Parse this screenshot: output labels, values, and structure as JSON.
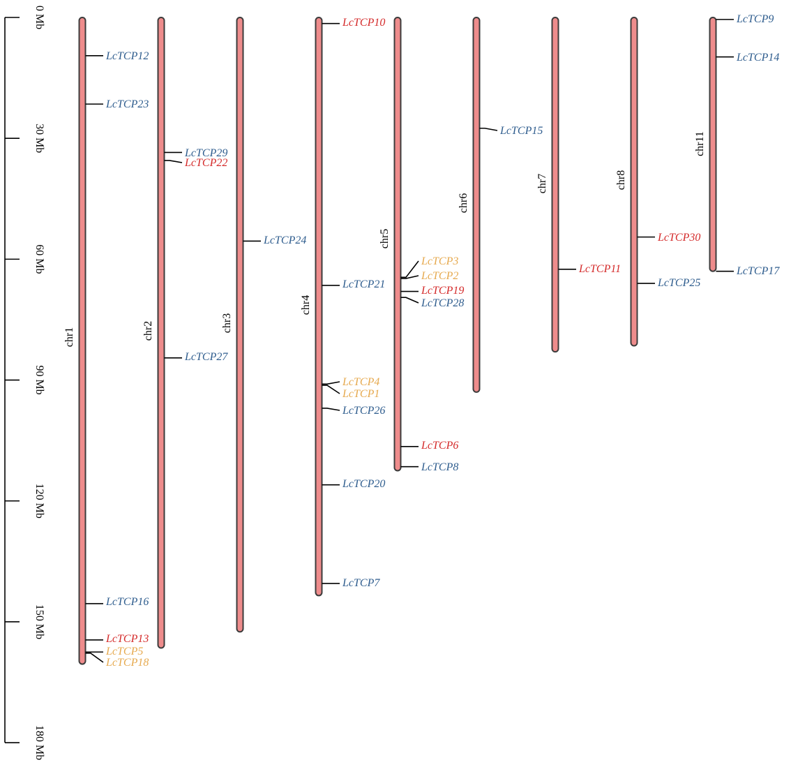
{
  "scale": {
    "unit": "Mb",
    "max": 180,
    "ticks": [
      {
        "value": 0,
        "label": "0 Mb"
      },
      {
        "value": 30,
        "label": "30 Mb"
      },
      {
        "value": 60,
        "label": "60 Mb"
      },
      {
        "value": 90,
        "label": "90 Mb"
      },
      {
        "value": 120,
        "label": "120 Mb"
      },
      {
        "value": 150,
        "label": "150 Mb"
      },
      {
        "value": 180,
        "label": "180 Mb"
      }
    ]
  },
  "colors": {
    "chromosome_fill": "#ee8c8c",
    "chromosome_stroke": "#3c3c3c",
    "red": "#d42a2a",
    "blue": "#2f5d8e",
    "orange": "#e6a94e"
  },
  "chromosomes": [
    {
      "name": "chr1",
      "length": 160.5,
      "genes": [
        {
          "name": "LcTCP12",
          "pos": 9.5,
          "color": "blue"
        },
        {
          "name": "LcTCP23",
          "pos": 21.5,
          "color": "blue"
        },
        {
          "name": "LcTCP16",
          "pos": 145.5,
          "color": "blue"
        },
        {
          "name": "LcTCP13",
          "pos": 154.5,
          "color": "red"
        },
        {
          "name": "LcTCP5",
          "pos": 157.5,
          "color": "orange"
        },
        {
          "name": "LcTCP18",
          "pos": 157.8,
          "color": "orange"
        }
      ]
    },
    {
      "name": "chr2",
      "length": 156.5,
      "genes": [
        {
          "name": "LcTCP29",
          "pos": 33.5,
          "color": "blue"
        },
        {
          "name": "LcTCP22",
          "pos": 35.5,
          "color": "red"
        },
        {
          "name": "LcTCP27",
          "pos": 84.5,
          "color": "blue"
        }
      ]
    },
    {
      "name": "chr3",
      "length": 152.5,
      "genes": [
        {
          "name": "LcTCP24",
          "pos": 55.5,
          "color": "blue"
        }
      ]
    },
    {
      "name": "chr4",
      "length": 143.5,
      "genes": [
        {
          "name": "LcTCP10",
          "pos": 1.5,
          "color": "red"
        },
        {
          "name": "LcTCP21",
          "pos": 66.5,
          "color": "blue"
        },
        {
          "name": "LcTCP4",
          "pos": 91.0,
          "color": "orange"
        },
        {
          "name": "LcTCP1",
          "pos": 91.3,
          "color": "orange"
        },
        {
          "name": "LcTCP26",
          "pos": 97.0,
          "color": "blue"
        },
        {
          "name": "LcTCP20",
          "pos": 116.0,
          "color": "blue"
        },
        {
          "name": "LcTCP7",
          "pos": 140.5,
          "color": "blue"
        }
      ]
    },
    {
      "name": "chr5",
      "length": 112.5,
      "genes": [
        {
          "name": "LcTCP3",
          "pos": 64.5,
          "color": "orange"
        },
        {
          "name": "LcTCP2",
          "pos": 64.8,
          "color": "orange"
        },
        {
          "name": "LcTCP19",
          "pos": 68.0,
          "color": "red"
        },
        {
          "name": "LcTCP28",
          "pos": 69.5,
          "color": "blue"
        },
        {
          "name": "LcTCP6",
          "pos": 106.5,
          "color": "red"
        },
        {
          "name": "LcTCP8",
          "pos": 111.5,
          "color": "blue"
        }
      ]
    },
    {
      "name": "chr6",
      "length": 93.0,
      "genes": [
        {
          "name": "LcTCP15",
          "pos": 27.5,
          "color": "blue"
        }
      ]
    },
    {
      "name": "chr7",
      "length": 83.0,
      "genes": [
        {
          "name": "LcTCP11",
          "pos": 62.5,
          "color": "red"
        }
      ]
    },
    {
      "name": "chr8",
      "length": 81.5,
      "genes": [
        {
          "name": "LcTCP30",
          "pos": 54.5,
          "color": "red"
        },
        {
          "name": "LcTCP25",
          "pos": 66.0,
          "color": "blue"
        }
      ]
    },
    {
      "name": "chr11",
      "length": 63.0,
      "genes": [
        {
          "name": "LcTCP9",
          "pos": 0.5,
          "color": "blue"
        },
        {
          "name": "LcTCP14",
          "pos": 9.8,
          "color": "blue"
        },
        {
          "name": "LcTCP17",
          "pos": 63.0,
          "color": "blue"
        }
      ]
    }
  ]
}
